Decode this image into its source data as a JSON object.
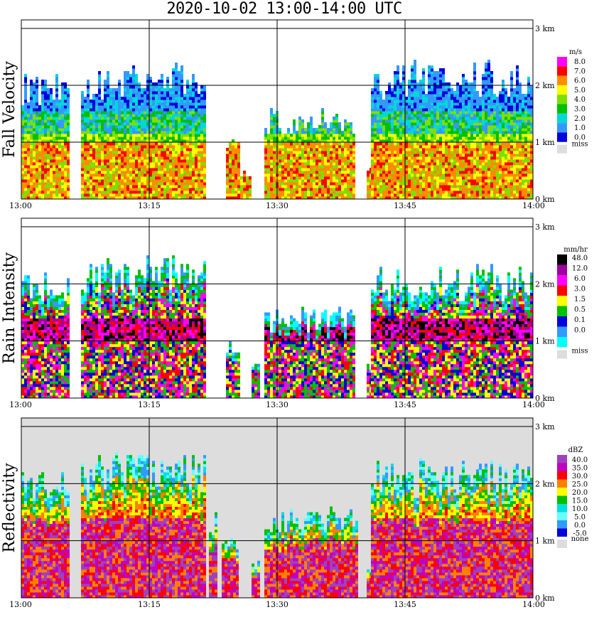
{
  "title": "2020-10-02   13:00-14:00 UTC",
  "chart_data": [
    {
      "type": "heatmap",
      "panel": "fall-velocity",
      "ylabel": "Fall Velocity",
      "x_ticks": [
        "13:00",
        "13:15",
        "13:30",
        "13:45",
        "14:00"
      ],
      "y_ticks": [
        "0 km",
        "1 km",
        "2 km",
        "3 km"
      ],
      "xlim": [
        "13:00",
        "14:00"
      ],
      "ylim_km": [
        0,
        3
      ],
      "grid": true,
      "legend": {
        "unit": "m/s",
        "labels": [
          "8.0",
          "7.0",
          "6.0",
          "5.0",
          "4.0",
          "3.0",
          "2.0",
          "1.0",
          "0.0"
        ],
        "colors": [
          "#ff00ff",
          "#ff0000",
          "#ff8c00",
          "#ffff00",
          "#7ce000",
          "#00c000",
          "#00d8d8",
          "#3399ff",
          "#0000dd"
        ],
        "missing_label": "miss",
        "missing_color": "#dddddd"
      }
    },
    {
      "type": "heatmap",
      "panel": "rain-intensity",
      "ylabel": "Rain Intensity",
      "x_ticks": [
        "13:00",
        "13:15",
        "13:30",
        "13:45",
        "14:00"
      ],
      "y_ticks": [
        "0 km",
        "1 km",
        "2 km",
        "3 km"
      ],
      "xlim": [
        "13:00",
        "14:00"
      ],
      "ylim_km": [
        0,
        3
      ],
      "grid": true,
      "legend": {
        "unit": "mm/hr",
        "labels": [
          "48.0",
          "12.0",
          "6.0",
          "3.0",
          "1.5",
          "0.5",
          "0.1",
          "0.0"
        ],
        "colors": [
          "#000000",
          "#a000a0",
          "#ff00ff",
          "#ff0000",
          "#ffff00",
          "#00c000",
          "#0000dd",
          "#3399ff",
          "#00ffff"
        ],
        "missing_label": "miss",
        "missing_color": "#dddddd"
      }
    },
    {
      "type": "heatmap",
      "panel": "reflectivity",
      "ylabel": "Reflectivity",
      "x_ticks": [
        "13:00",
        "13:15",
        "13:30",
        "13:45",
        "14:00"
      ],
      "y_ticks": [
        "0 km",
        "1 km",
        "2 km",
        "3 km"
      ],
      "xlim": [
        "13:00",
        "14:00"
      ],
      "ylim_km": [
        0,
        3
      ],
      "grid": true,
      "legend": {
        "unit": "dBZ",
        "labels": [
          "40.0",
          "35.0",
          "30.0",
          "25.0",
          "20.0",
          "15.0",
          "10.0",
          "5.0",
          "0.0",
          "-5.0"
        ],
        "colors": [
          "#a040c0",
          "#c000c0",
          "#ff0000",
          "#ff8000",
          "#ffff00",
          "#00c000",
          "#00e0e0",
          "#66ffff",
          "#3399ff",
          "#0000dd"
        ],
        "missing_label": "none",
        "missing_color": "#dddddd"
      }
    }
  ]
}
